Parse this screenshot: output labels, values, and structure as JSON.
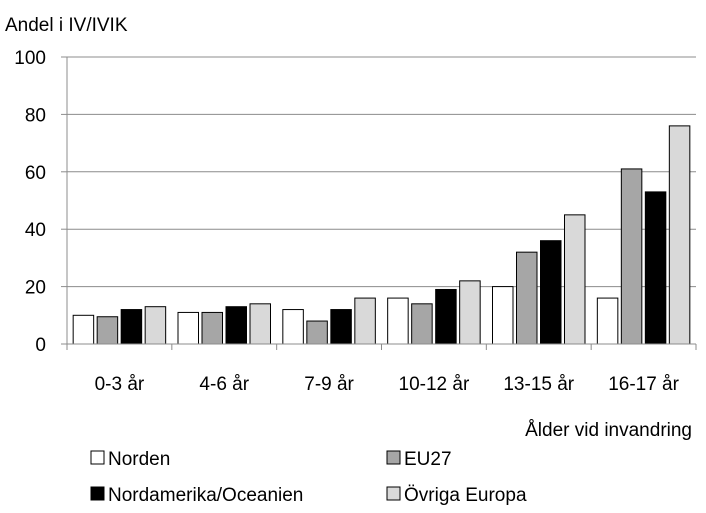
{
  "chart_data": {
    "type": "bar",
    "title": "",
    "ylabel": "Andel i IV/IVIK",
    "xlabel": "Ålder vid invandring",
    "ylim": [
      0,
      100
    ],
    "yticks": [
      0,
      20,
      40,
      60,
      80,
      100
    ],
    "grid": true,
    "legend_position": "bottom",
    "categories": [
      "0-3 år",
      "4-6 år",
      "7-9 år",
      "10-12 år",
      "13-15 år",
      "16-17 år"
    ],
    "series": [
      {
        "name": "Norden",
        "color": "#ffffff",
        "values": [
          10,
          11,
          12,
          16,
          20,
          16
        ]
      },
      {
        "name": "EU27",
        "color": "#a6a6a6",
        "values": [
          9.5,
          11,
          8,
          14,
          32,
          61
        ]
      },
      {
        "name": "Nordamerika/Oceanien",
        "color": "#000000",
        "values": [
          12,
          13,
          12,
          19,
          36,
          53
        ]
      },
      {
        "name": "Övriga Europa",
        "color": "#d9d9d9",
        "values": [
          13,
          14,
          16,
          22,
          45,
          76
        ]
      }
    ]
  }
}
